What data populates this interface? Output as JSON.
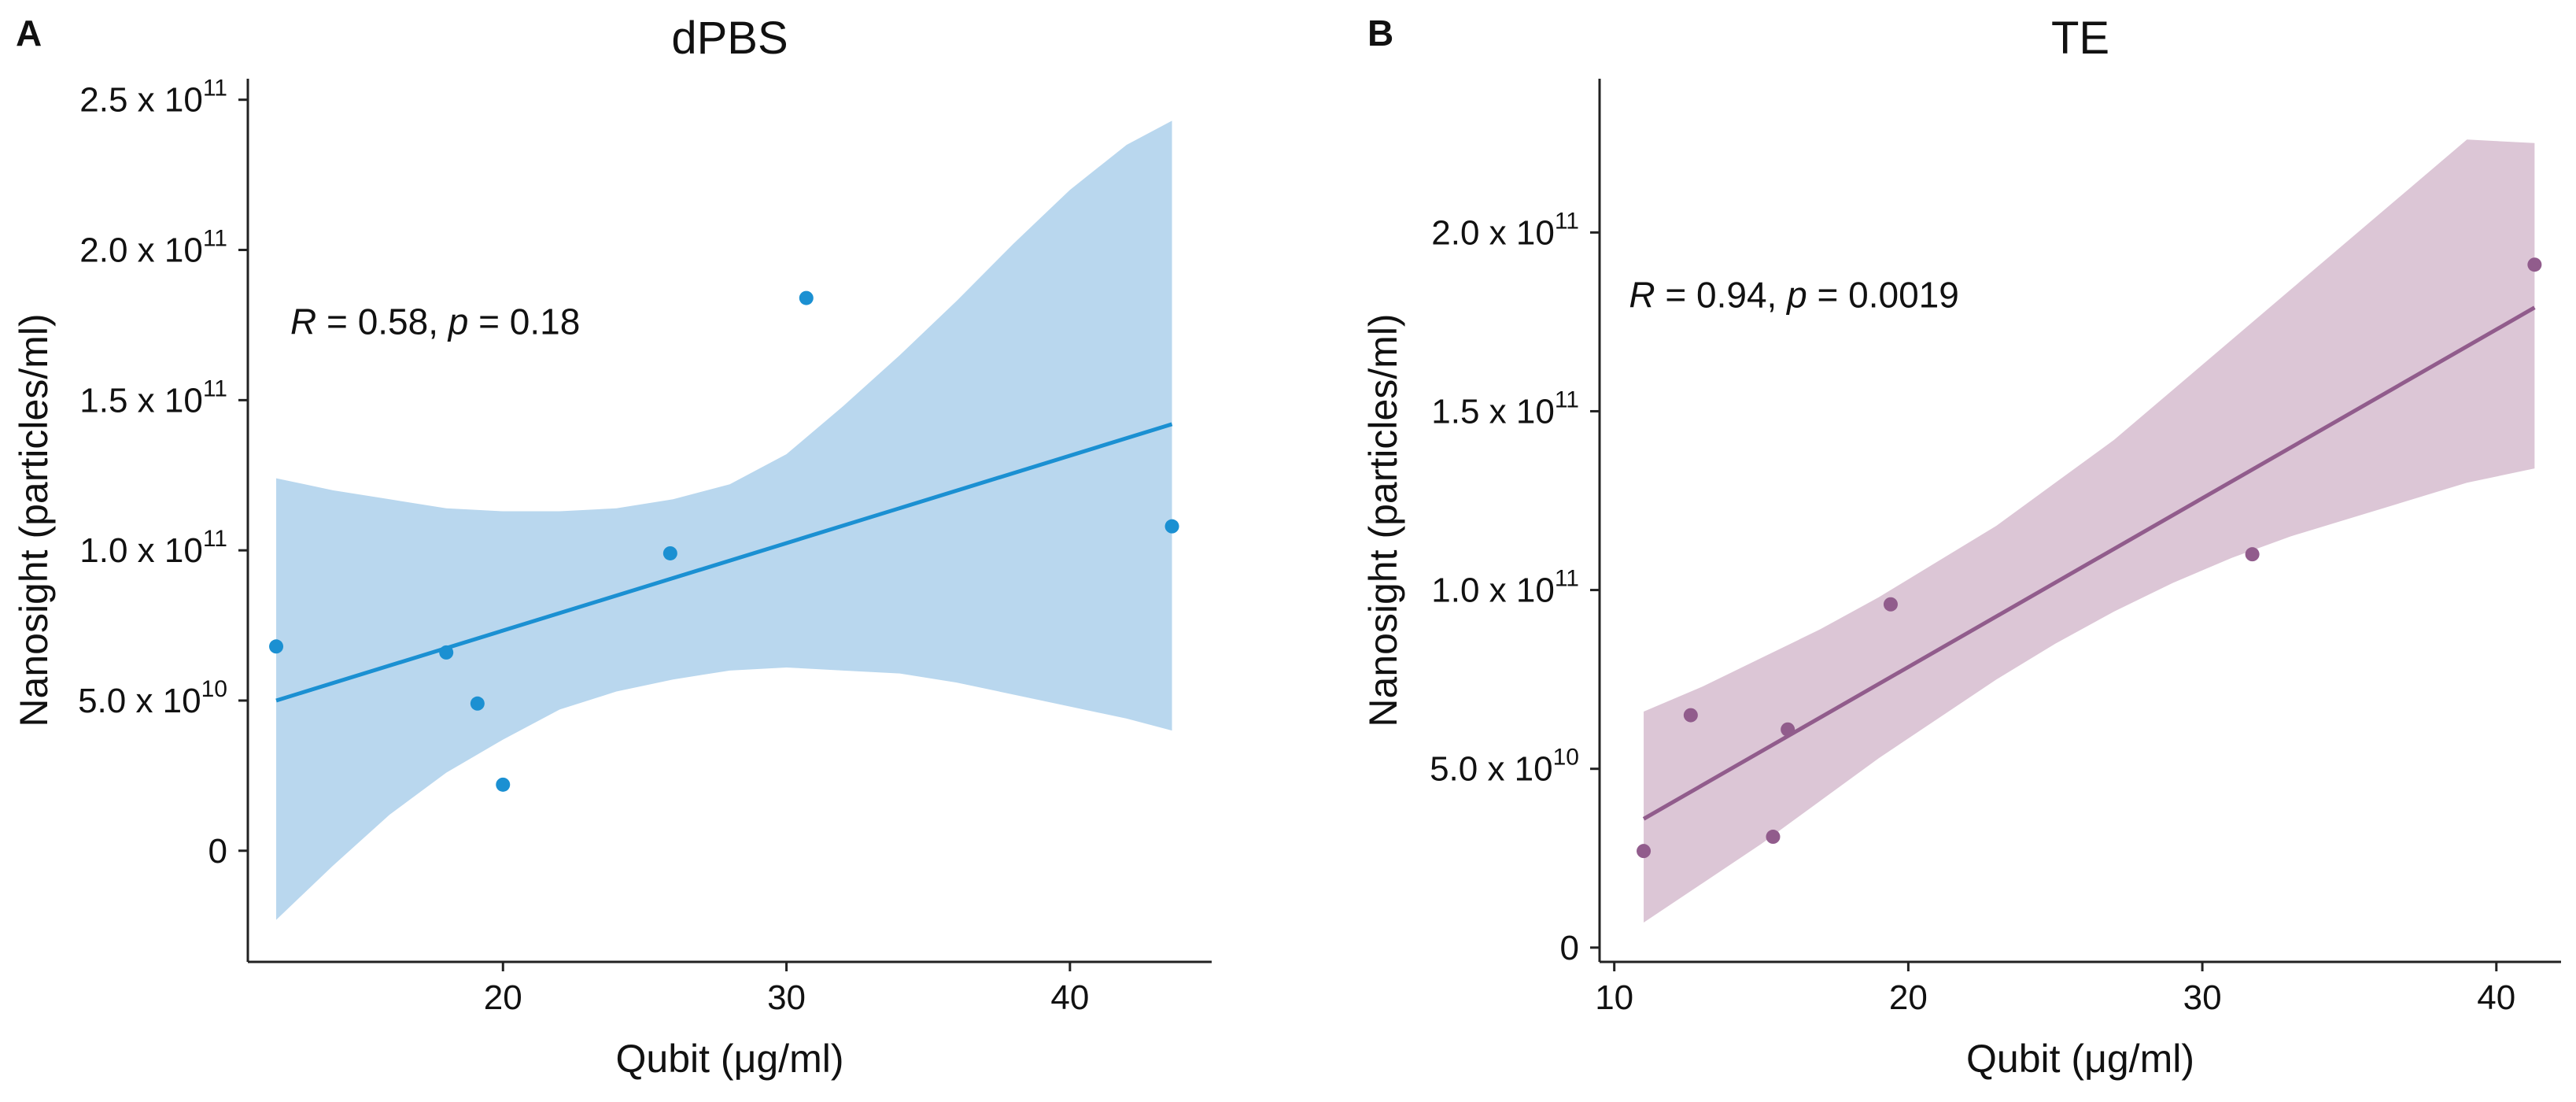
{
  "chart_data": [
    {
      "type": "scatter",
      "panel_label": "A",
      "title": "dPBS",
      "xlabel": "Qubit (μg/ml)",
      "ylabel": "Nanosight (particles/ml)",
      "xlim": [
        11,
        45
      ],
      "ylim": [
        -37000000000.0,
        257000000000.0
      ],
      "xticks": [
        20,
        30,
        40
      ],
      "xtick_labels": [
        "20",
        "30",
        "40"
      ],
      "yticks": [
        0,
        50000000000.0,
        100000000000.0,
        150000000000.0,
        200000000000.0,
        250000000000.0
      ],
      "ytick_mantissas": [
        "0",
        "5.0 x 10",
        "1.0 x 10",
        "1.5 x 10",
        "2.0 x 10",
        "2.5 x 10"
      ],
      "ytick_exponents": [
        "",
        "10",
        "11",
        "11",
        "11",
        "11"
      ],
      "annotation": {
        "r_symbol": "R",
        "r_text": " = 0.58, ",
        "p_symbol": "p",
        "p_text": " = 0.18",
        "x": 12.5,
        "y": 172000000000.0
      },
      "color": "#1b90d2",
      "band_color": "#b9d7ee",
      "points": [
        {
          "x": 12.0,
          "y": 68000000000.0
        },
        {
          "x": 18.0,
          "y": 66000000000.0
        },
        {
          "x": 19.1,
          "y": 49000000000.0
        },
        {
          "x": 20.0,
          "y": 22000000000.0
        },
        {
          "x": 25.9,
          "y": 99000000000.0
        },
        {
          "x": 30.7,
          "y": 184000000000.0
        },
        {
          "x": 43.6,
          "y": 108000000000.0
        }
      ],
      "fit": {
        "x": [
          12.0,
          43.6
        ],
        "y": [
          50000000000.0,
          142000000000.0
        ]
      },
      "band": {
        "x": [
          12.0,
          14.0,
          16.0,
          18.0,
          20.0,
          22.0,
          24.0,
          26.0,
          28.0,
          30.0,
          32.0,
          34.0,
          36.0,
          38.0,
          40.0,
          42.0,
          43.6
        ],
        "upper": [
          124000000000.0,
          120000000000.0,
          117000000000.0,
          114000000000.0,
          113000000000.0,
          113000000000.0,
          114000000000.0,
          117000000000.0,
          122000000000.0,
          132000000000.0,
          148000000000.0,
          165000000000.0,
          183000000000.0,
          202000000000.0,
          220000000000.0,
          235000000000.0,
          243000000000.0
        ],
        "lower": [
          -23000000000.0,
          -5000000000.0,
          12000000000.0,
          26000000000.0,
          37000000000.0,
          47000000000.0,
          53000000000.0,
          57000000000.0,
          60000000000.0,
          61000000000.0,
          60000000000.0,
          59000000000.0,
          56000000000.0,
          52000000000.0,
          48000000000.0,
          44000000000.0,
          40000000000.0
        ]
      }
    },
    {
      "type": "scatter",
      "panel_label": "B",
      "title": "TE",
      "xlabel": "Qubit (μg/ml)",
      "ylabel": "Nanosight (particles/ml)",
      "xlim": [
        9.5,
        42.2
      ],
      "ylim": [
        -4000000000.0,
        243000000000.0
      ],
      "xticks": [
        10,
        20,
        30,
        40
      ],
      "xtick_labels": [
        "10",
        "20",
        "30",
        "40"
      ],
      "yticks": [
        0,
        50000000000.0,
        100000000000.0,
        150000000000.0,
        200000000000.0
      ],
      "ytick_mantissas": [
        "0",
        "5.0 x 10",
        "1.0 x 10",
        "1.5 x 10",
        "2.0 x 10"
      ],
      "ytick_exponents": [
        "",
        "10",
        "11",
        "11",
        "11"
      ],
      "annotation": {
        "r_symbol": "R",
        "r_text": " = 0.94, ",
        "p_symbol": "p",
        "p_text": " = 0.0019",
        "x": 10.5,
        "y": 179000000000.0
      },
      "color": "#915c8c",
      "band_color": "#dcc6d6",
      "points": [
        {
          "x": 11.0,
          "y": 27000000000.0
        },
        {
          "x": 12.6,
          "y": 65000000000.0
        },
        {
          "x": 15.4,
          "y": 31000000000.0
        },
        {
          "x": 15.9,
          "y": 61000000000.0
        },
        {
          "x": 19.4,
          "y": 96000000000.0
        },
        {
          "x": 31.7,
          "y": 110000000000.0
        },
        {
          "x": 41.3,
          "y": 191000000000.0
        }
      ],
      "fit": {
        "x": [
          11.0,
          41.3
        ],
        "y": [
          36000000000.0,
          179000000000.0
        ]
      },
      "band": {
        "x": [
          11.0,
          13.0,
          15.0,
          17.0,
          19.0,
          21.0,
          23.0,
          25.0,
          27.0,
          29.0,
          31.0,
          33.0,
          35.0,
          37.0,
          39.0,
          41.3
        ],
        "upper": [
          66000000000.0,
          73000000000.0,
          81000000000.0,
          89000000000.0,
          98000000000.0,
          108000000000.0,
          118000000000.0,
          130000000000.0,
          142000000000.0,
          156000000000.0,
          170000000000.0,
          184000000000.0,
          198000000000.0,
          212000000000.0,
          226000000000.0,
          225000000000.0
        ],
        "lower": [
          7000000000.0,
          18000000000.0,
          29000000000.0,
          41000000000.0,
          53000000000.0,
          64000000000.0,
          75000000000.0,
          85000000000.0,
          94000000000.0,
          102000000000.0,
          109000000000.0,
          115000000000.0,
          120000000000.0,
          125000000000.0,
          130000000000.0,
          134000000000.0
        ]
      }
    }
  ]
}
